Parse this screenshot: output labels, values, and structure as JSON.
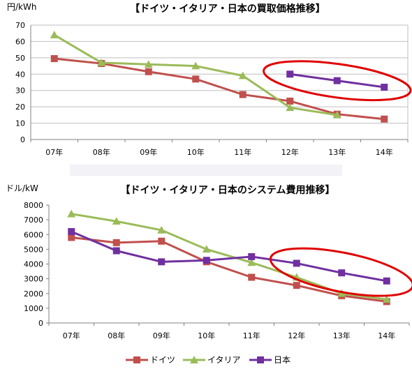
{
  "colors": {
    "germany": "#c0504d",
    "italy": "#9bbb59",
    "japan": "#7030a0",
    "highlight": "#e00000",
    "grid": "#bfbfbf",
    "axis": "#808080",
    "separator": "#f2f2f7"
  },
  "chart_data": [
    {
      "type": "line",
      "title": "【ドイツ・イタリア・日本の買取価格推移】",
      "ylabel": "円/kWh",
      "xlabel": "",
      "categories": [
        "07年",
        "08年",
        "09年",
        "10年",
        "11年",
        "12年",
        "13年",
        "14年"
      ],
      "ylim": [
        0,
        70
      ],
      "yticks": [
        0,
        10,
        20,
        30,
        40,
        50,
        60,
        70
      ],
      "grid": true,
      "series": [
        {
          "name": "ドイツ",
          "marker": "square",
          "color": "#c0504d",
          "values": [
            49.5,
            46.5,
            41.5,
            37,
            27.5,
            23.5,
            15.5,
            12.5
          ]
        },
        {
          "name": "イタリア",
          "marker": "triangle",
          "color": "#9bbb59",
          "values": [
            64,
            47,
            46,
            45,
            39,
            19.5,
            15,
            null
          ]
        },
        {
          "name": "日本",
          "marker": "square",
          "color": "#7030a0",
          "values": [
            null,
            null,
            null,
            null,
            null,
            40,
            36,
            32
          ]
        }
      ],
      "highlight": {
        "series": "日本",
        "from_index": 5,
        "to_index": 7
      }
    },
    {
      "type": "line",
      "title": "【ドイツ・イタリア・日本のシステム費用推移】",
      "ylabel": "ドル/kW",
      "xlabel": "",
      "categories": [
        "07年",
        "08年",
        "09年",
        "10年",
        "11年",
        "12年",
        "13年",
        "14年"
      ],
      "ylim": [
        0,
        8000
      ],
      "yticks": [
        0,
        1000,
        2000,
        3000,
        4000,
        5000,
        6000,
        7000,
        8000
      ],
      "grid": false,
      "legend": "bottom",
      "series": [
        {
          "name": "ドイツ",
          "marker": "square",
          "color": "#c0504d",
          "values": [
            5800,
            5450,
            5550,
            4150,
            3100,
            2550,
            1850,
            1450
          ]
        },
        {
          "name": "イタリア",
          "marker": "triangle",
          "color": "#9bbb59",
          "values": [
            7400,
            6900,
            6300,
            5000,
            4100,
            3100,
            2000,
            1600
          ]
        },
        {
          "name": "日本",
          "marker": "square",
          "color": "#7030a0",
          "values": [
            6200,
            4900,
            4150,
            4250,
            4500,
            4050,
            3400,
            2850
          ]
        }
      ],
      "highlight": {
        "series": "日本",
        "from_index": 5,
        "to_index": 7
      }
    }
  ],
  "legend": [
    {
      "name": "ドイツ",
      "marker": "square",
      "color": "#c0504d"
    },
    {
      "name": "イタリア",
      "marker": "triangle",
      "color": "#9bbb59"
    },
    {
      "name": "日本",
      "marker": "square",
      "color": "#7030a0"
    }
  ]
}
